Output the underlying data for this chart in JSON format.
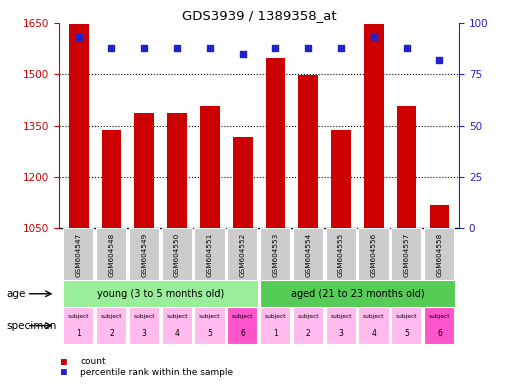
{
  "title": "GDS3939 / 1389358_at",
  "samples": [
    "GSM604547",
    "GSM604548",
    "GSM604549",
    "GSM604550",
    "GSM604551",
    "GSM604552",
    "GSM604553",
    "GSM604554",
    "GSM604555",
    "GSM604556",
    "GSM604557",
    "GSM604558"
  ],
  "counts": [
    1648,
    1338,
    1388,
    1388,
    1408,
    1318,
    1548,
    1498,
    1338,
    1648,
    1408,
    1118
  ],
  "percentiles": [
    93,
    88,
    88,
    88,
    88,
    85,
    88,
    88,
    88,
    93,
    88,
    82
  ],
  "ylim_left": [
    1050,
    1650
  ],
  "ylim_right": [
    0,
    100
  ],
  "yticks_left": [
    1050,
    1200,
    1350,
    1500,
    1650
  ],
  "yticks_right": [
    0,
    25,
    50,
    75,
    100
  ],
  "bar_color": "#cc0000",
  "dot_color": "#2222cc",
  "age_young_color": "#99ee99",
  "age_aged_color": "#55cc55",
  "specimen_light_color": "#ffbbee",
  "specimen_dark_color": "#ff55cc",
  "age_groups": [
    "young (3 to 5 months old)",
    "aged (21 to 23 months old)"
  ],
  "legend_count_color": "#cc0000",
  "legend_dot_color": "#2222cc",
  "bar_baseline": 1050
}
